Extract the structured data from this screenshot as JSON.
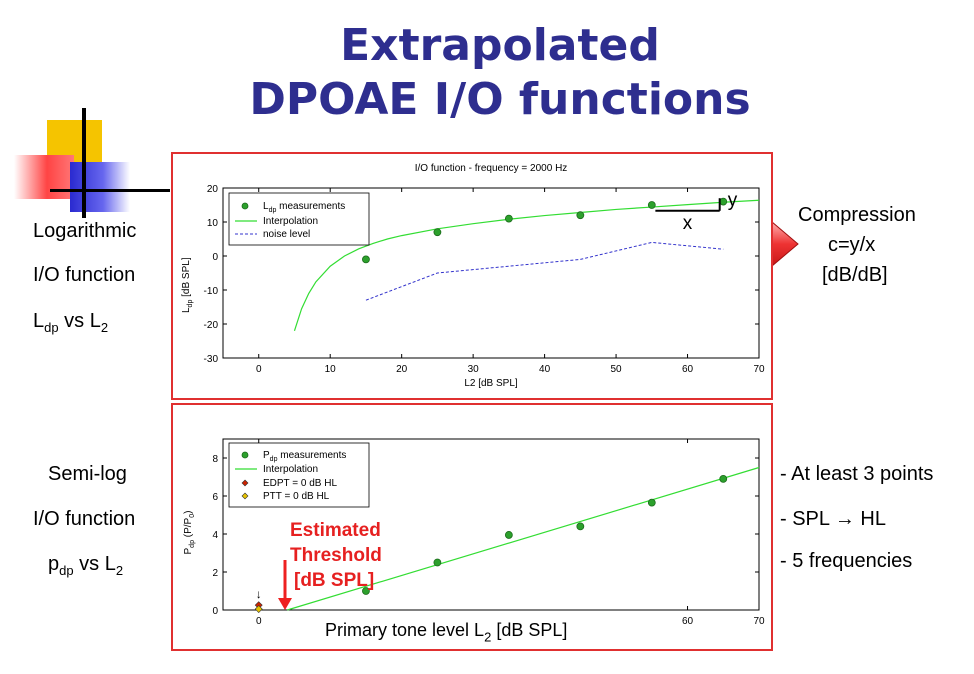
{
  "title": {
    "line1": "Extrapolated",
    "line2": "DPOAE I/O functions"
  },
  "left_labels": {
    "log_line1": "Logarithmic",
    "log_line2": "I/O function",
    "log_line3_main": "L",
    "log_line3_sub": "dp",
    "log_line3_rest": " vs L",
    "log_line3_sub2": "2",
    "semi_line1": "Semi-log",
    "semi_line2": "I/O function",
    "semi_line3_main": "p",
    "semi_line3_sub": "dp",
    "semi_line3_rest": " vs L",
    "semi_line3_sub2": "2"
  },
  "right_labels": {
    "compression_line1": "Compression",
    "compression_line2": "c=y/x",
    "compression_line3": "[dB/dB]",
    "bullet1": "- At least 3 points",
    "bullet2_a": "- SPL ",
    "bullet2_arrow": "→",
    "bullet2_b": " HL",
    "bullet3": "- 5 frequencies"
  },
  "annotations": {
    "x_label": "x",
    "y_label": "y",
    "threshold_line1": "Estimated",
    "threshold_line2": "Threshold",
    "threshold_line3": "[dB SPL]",
    "small_down_arrow": "↓"
  },
  "colors": {
    "title": "#2e2e8f",
    "panel_border": "#e03030",
    "measurement_green": "#2ca02c",
    "interpolation_green": "#33dd33",
    "noise_blue": "#3333cc",
    "edpt_red": "#cc2200",
    "ptt_yellow": "#e6c200",
    "arrow_red": "#ee3333"
  },
  "chart_data": [
    {
      "type": "line",
      "title": "I/O function - frequency = 2000 Hz",
      "xlabel": "L2 [dB SPL]",
      "ylabel_main": "L",
      "ylabel_sub": "dp",
      "ylabel_rest": " [dB SPL]",
      "xlim": [
        -5,
        70
      ],
      "ylim": [
        -30,
        20
      ],
      "xticks": [
        0,
        10,
        20,
        30,
        40,
        50,
        60,
        70
      ],
      "yticks": [
        -30,
        -20,
        -10,
        0,
        10,
        20
      ],
      "legend_position": "top-left",
      "series": [
        {
          "name": "L_dp measurements",
          "legend_main": "L",
          "legend_sub": "dp",
          "legend_rest": " measurements",
          "style": "markers",
          "x": [
            15,
            25,
            35,
            45,
            55,
            65
          ],
          "y": [
            -1,
            7,
            11,
            12,
            15,
            16
          ]
        },
        {
          "name": "Interpolation",
          "style": "solid",
          "x": [
            5,
            6,
            7,
            8,
            10,
            12,
            14,
            16,
            18,
            20,
            25,
            30,
            35,
            40,
            45,
            50,
            55,
            60,
            65,
            70
          ],
          "y": [
            -22,
            -15.5,
            -11,
            -7.6,
            -3.0,
            0.0,
            2.1,
            3.7,
            5.0,
            6.0,
            8.0,
            9.5,
            10.8,
            11.9,
            12.8,
            13.7,
            14.4,
            15.1,
            15.8,
            16.4
          ]
        },
        {
          "name": "noise level",
          "style": "dashed",
          "x": [
            15,
            25,
            35,
            45,
            55,
            65
          ],
          "y": [
            -13,
            -5,
            -3,
            -1,
            4,
            2
          ]
        }
      ]
    },
    {
      "type": "line",
      "xlabel_main": "Primary tone level L",
      "xlabel_sub": "2",
      "xlabel_rest": " [dB SPL]",
      "ylabel_main": "P",
      "ylabel_sub": "dp",
      "ylabel_rest": " (P/P",
      "ylabel_sub2": "0",
      "ylabel_end": ")",
      "xlim": [
        -5,
        70
      ],
      "ylim": [
        0,
        9
      ],
      "xticks": [
        0,
        60,
        70
      ],
      "yticks": [
        0,
        2,
        4,
        6,
        8
      ],
      "legend_position": "top-left",
      "series": [
        {
          "name": "P_dp measurements",
          "legend_main": "P",
          "legend_sub": "dp",
          "legend_rest": " measurements",
          "style": "markers",
          "x": [
            15,
            25,
            35,
            45,
            55,
            65
          ],
          "y": [
            1.0,
            2.5,
            3.95,
            4.4,
            5.65,
            6.9
          ]
        },
        {
          "name": "Interpolation",
          "style": "solid",
          "x": [
            4,
            70
          ],
          "y": [
            0,
            7.5
          ]
        },
        {
          "name": "EDPT = 0 dB HL",
          "style": "diamond-red",
          "x": [
            0
          ],
          "y": [
            0.15
          ]
        },
        {
          "name": "PTT = 0 dB HL",
          "style": "diamond-yellow",
          "x": [
            0
          ],
          "y": [
            0.05
          ]
        }
      ]
    }
  ]
}
